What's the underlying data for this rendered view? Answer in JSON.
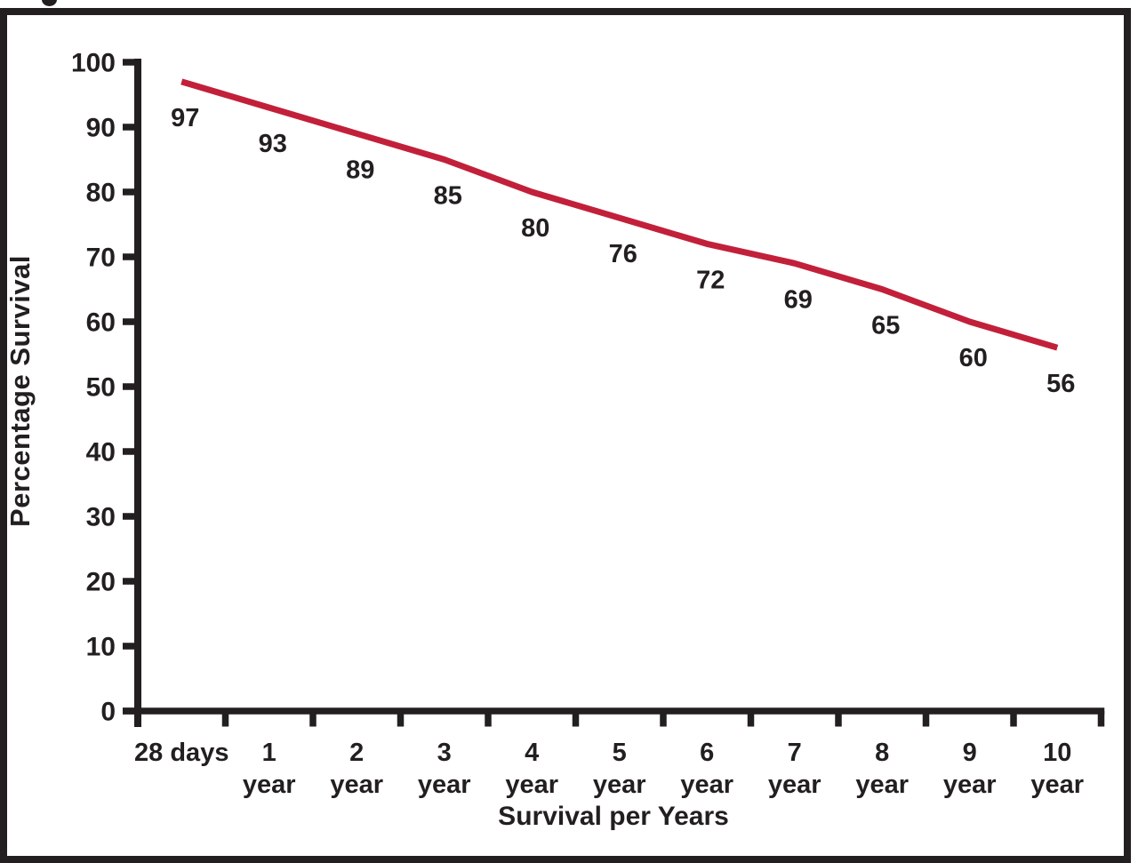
{
  "figure": {
    "background_color": "#ffffff",
    "frame_color": "#231f20",
    "cropped_text_fragment": "g-descender"
  },
  "chart_data": {
    "type": "line",
    "categories": [
      "28 days",
      "1 year",
      "2 year",
      "3 year",
      "4 year",
      "5 year",
      "6 year",
      "7 year",
      "8 year",
      "9 year",
      "10 year"
    ],
    "category_label_lines": [
      [
        "28 days"
      ],
      [
        "1",
        "year"
      ],
      [
        "2",
        "year"
      ],
      [
        "3",
        "year"
      ],
      [
        "4",
        "year"
      ],
      [
        "5",
        "year"
      ],
      [
        "6",
        "year"
      ],
      [
        "7",
        "year"
      ],
      [
        "8",
        "year"
      ],
      [
        "9",
        "year"
      ],
      [
        "10",
        "year"
      ]
    ],
    "values": [
      97,
      93,
      89,
      85,
      80,
      76,
      72,
      69,
      65,
      60,
      56
    ],
    "data_labels": [
      "97",
      "93",
      "89",
      "85",
      "80",
      "76",
      "72",
      "69",
      "65",
      "60",
      "56"
    ],
    "title": "",
    "xlabel": "Survival per Years",
    "ylabel": "Percentage Survival",
    "yticks": [
      0,
      10,
      20,
      30,
      40,
      50,
      60,
      70,
      80,
      90,
      100
    ],
    "ylim": [
      0,
      100
    ],
    "grid": false,
    "legend": "none",
    "line_color": "#c2203a",
    "axis_color": "#231f20",
    "text_color": "#231f20"
  }
}
